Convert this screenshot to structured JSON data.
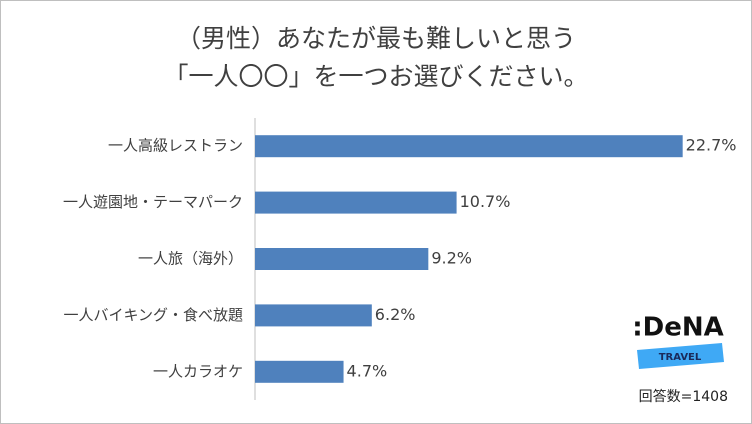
{
  "chart_data": {
    "type": "hbar",
    "title": [
      "（男性）あなたが最も難しいと思う",
      "「一人〇〇」を一つお選びください。"
    ],
    "categories": [
      "一人高級レストラン",
      "一人遊園地・テーマパーク",
      "一人旅（海外）",
      "一人バイキング・食べ放題",
      "一人カラオケ"
    ],
    "values": [
      22.7,
      10.7,
      9.2,
      6.2,
      4.7
    ],
    "value_labels": [
      "22.7%",
      "10.7%",
      "9.2%",
      "6.2%",
      "4.7%"
    ],
    "color": "#4f81bd",
    "xlim": [
      0,
      25
    ],
    "note": "回答数=1408",
    "logo": {
      "name": ":DeNA",
      "tag": "TRAVEL"
    }
  }
}
